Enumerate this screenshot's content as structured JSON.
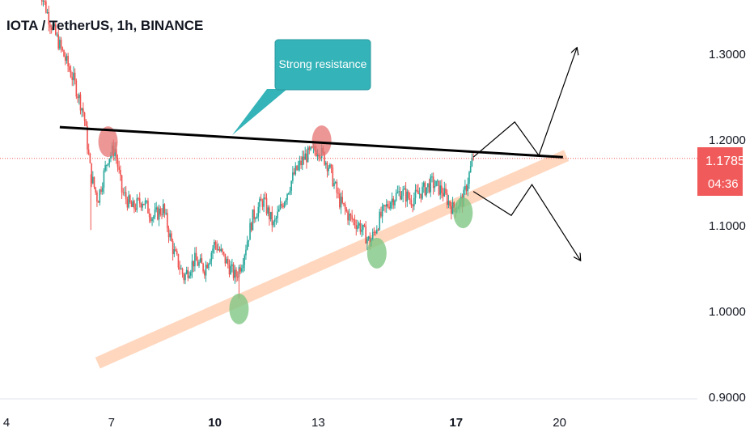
{
  "header": {
    "title": "IOTA / TetherUS, 1h, BINANCE"
  },
  "annotation": {
    "text": "Strong resistance"
  },
  "price_label": {
    "price": "1.1785",
    "countdown": "04:36"
  },
  "colors": {
    "up": "#26a69a",
    "down": "#ef5350",
    "resistance": "#000000",
    "support": "#ffd3b8",
    "callout": "#34b3b8",
    "price_tag": "#f15a5a"
  },
  "chart_data": {
    "type": "candlestick",
    "symbol": "IOTA / TetherUS",
    "interval": "1h",
    "exchange": "BINANCE",
    "y_ticks": [
      "1.3000",
      "1.2000",
      "1.1000",
      "1.0000",
      "0.9000"
    ],
    "x_ticks": [
      {
        "label": "4",
        "bold": false
      },
      {
        "label": "7",
        "bold": false
      },
      {
        "label": "10",
        "bold": true
      },
      {
        "label": "13",
        "bold": false
      },
      {
        "label": "17",
        "bold": true
      },
      {
        "label": "20",
        "bold": false
      }
    ],
    "ylim": [
      0.9,
      1.35
    ],
    "last_price": 1.1785,
    "close_path": [
      [
        4.9,
        1.38
      ],
      [
        5.2,
        1.34
      ],
      [
        5.6,
        1.3
      ],
      [
        5.9,
        1.27
      ],
      [
        6.2,
        1.23
      ],
      [
        6.4,
        1.16
      ],
      [
        6.6,
        1.13
      ],
      [
        6.9,
        1.18
      ],
      [
        7.1,
        1.19
      ],
      [
        7.3,
        1.14
      ],
      [
        7.6,
        1.12
      ],
      [
        7.9,
        1.13
      ],
      [
        8.2,
        1.11
      ],
      [
        8.5,
        1.12
      ],
      [
        8.8,
        1.07
      ],
      [
        9.1,
        1.04
      ],
      [
        9.4,
        1.06
      ],
      [
        9.7,
        1.05
      ],
      [
        10.0,
        1.08
      ],
      [
        10.3,
        1.06
      ],
      [
        10.6,
        1.04
      ],
      [
        10.8,
        1.06
      ],
      [
        11.1,
        1.11
      ],
      [
        11.4,
        1.13
      ],
      [
        11.7,
        1.1
      ],
      [
        12.0,
        1.13
      ],
      [
        12.3,
        1.16
      ],
      [
        12.6,
        1.18
      ],
      [
        13.0,
        1.19
      ],
      [
        13.3,
        1.17
      ],
      [
        13.6,
        1.13
      ],
      [
        13.9,
        1.11
      ],
      [
        14.2,
        1.1
      ],
      [
        14.5,
        1.08
      ],
      [
        14.8,
        1.11
      ],
      [
        15.1,
        1.13
      ],
      [
        15.4,
        1.14
      ],
      [
        15.7,
        1.13
      ],
      [
        16.0,
        1.14
      ],
      [
        16.3,
        1.15
      ],
      [
        16.6,
        1.14
      ],
      [
        16.9,
        1.12
      ],
      [
        17.2,
        1.13
      ],
      [
        17.5,
        1.18
      ]
    ],
    "resistance_line": [
      [
        5.5,
        1.215
      ],
      [
        20.1,
        1.18
      ]
    ],
    "support_channel": [
      [
        6.6,
        0.94
      ],
      [
        20.2,
        1.182
      ]
    ],
    "resistance_touches": [
      [
        6.9,
        1.198
      ],
      [
        13.1,
        1.199
      ]
    ],
    "support_touches": [
      [
        10.7,
        1.003
      ],
      [
        14.7,
        1.068
      ],
      [
        17.2,
        1.115
      ]
    ],
    "projection_up": [
      [
        17.5,
        1.18
      ],
      [
        18.7,
        1.221
      ],
      [
        19.4,
        1.182
      ],
      [
        20.5,
        1.307
      ]
    ],
    "projection_down": [
      [
        17.5,
        1.14
      ],
      [
        18.6,
        1.112
      ],
      [
        19.2,
        1.148
      ],
      [
        20.6,
        1.06
      ]
    ]
  }
}
